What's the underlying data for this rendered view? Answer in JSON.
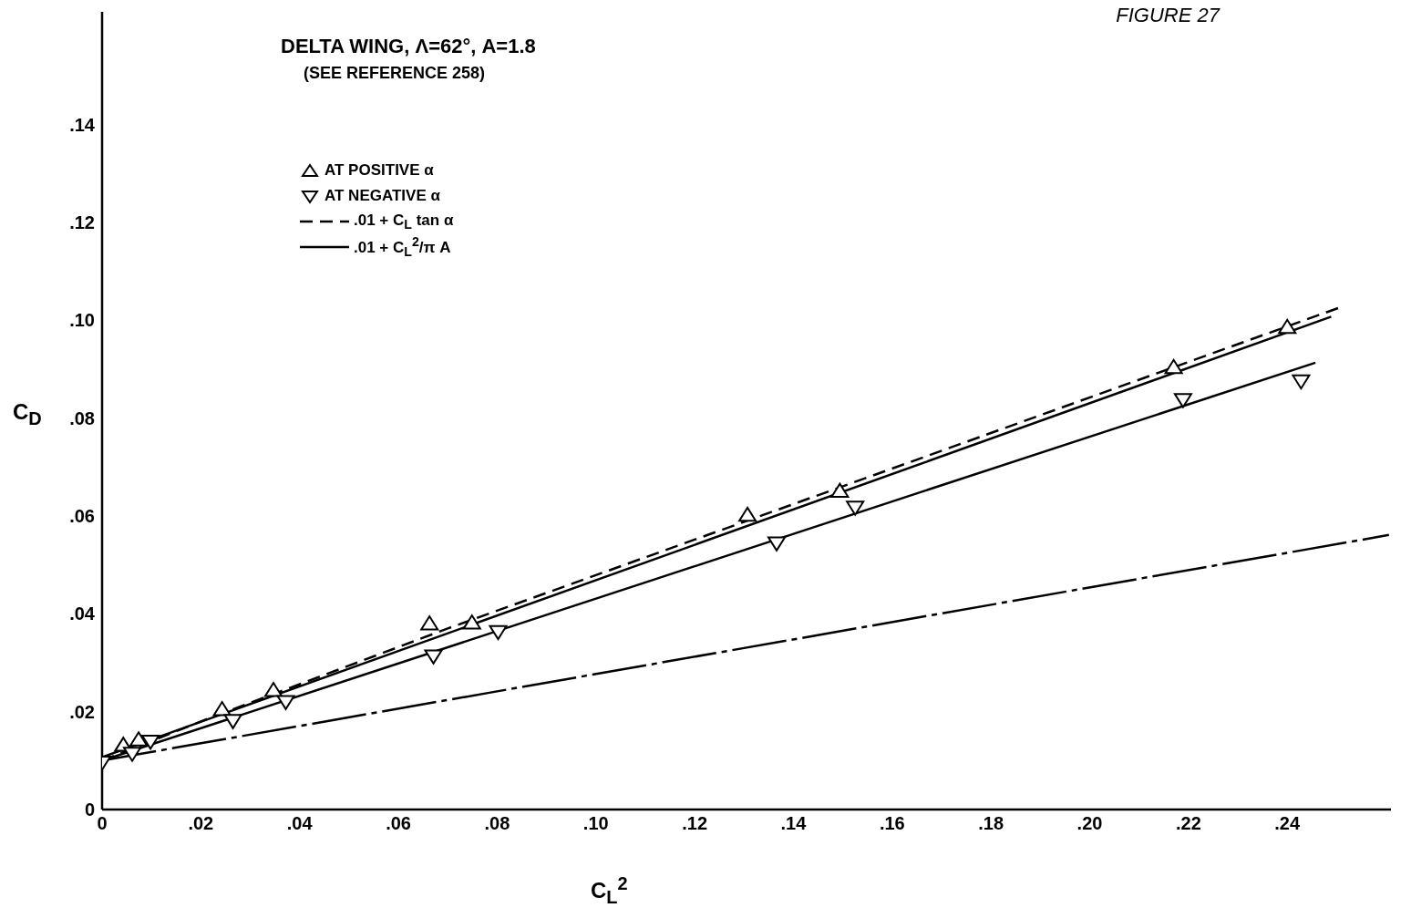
{
  "chart_data": {
    "type": "scatter",
    "title": "DELTA WING, Λ=62°, A=1.8",
    "subtitle": "(SEE REFERENCE 258)",
    "xlabel": "C$_{L}$$^{2}$",
    "ylabel": "C$_{D}$",
    "annotations": [
      "FIGURE 27"
    ],
    "xlim": [
      0,
      0.261
    ],
    "ylim": [
      0,
      0.163
    ],
    "xticks": [
      0,
      {
        "value": 0.02,
        "label": ".02"
      },
      {
        "value": 0.04,
        "label": ".04"
      },
      {
        "value": 0.06,
        "label": ".06"
      },
      {
        "value": 0.08,
        "label": ".08"
      },
      {
        "value": 0.1,
        "label": ".10"
      },
      {
        "value": 0.12,
        "label": ".12"
      },
      {
        "value": 0.14,
        "label": ".14"
      },
      {
        "value": 0.16,
        "label": ".16"
      },
      {
        "value": 0.18,
        "label": ".18"
      },
      {
        "value": 0.2,
        "label": ".20"
      },
      {
        "value": 0.22,
        "label": ".22"
      },
      {
        "value": 0.24,
        "label": ".24"
      }
    ],
    "yticks": [
      0,
      {
        "value": 0.02,
        "label": ".02"
      },
      {
        "value": 0.04,
        "label": ".04"
      },
      {
        "value": 0.06,
        "label": ".06"
      },
      {
        "value": 0.08,
        "label": ".08"
      },
      {
        "value": 0.1,
        "label": ".10"
      },
      {
        "value": 0.12,
        "label": ".12"
      },
      {
        "value": 0.14,
        "label": ".14"
      }
    ],
    "grid": false,
    "legend": "top left",
    "series": [
      {
        "name": "AT POSITIVE α",
        "marker": "triangle",
        "color": "#000000",
        "x": [
          0.0043,
          0.0074,
          0.0243,
          0.0347,
          0.0663,
          0.0749,
          0.1307,
          0.1494,
          0.217,
          0.24
        ],
        "values": [
          0.013,
          0.0141,
          0.0203,
          0.0242,
          0.0378,
          0.038,
          0.06,
          0.0649,
          0.0902,
          0.0984
        ]
      },
      {
        "name": "AT NEGATIVE α",
        "marker": "triangle-down",
        "color": "#000000",
        "x": [
          0,
          0.0061,
          0.0098,
          0.0265,
          0.0372,
          0.0671,
          0.0802,
          0.1366,
          0.1525,
          0.2189,
          0.2428
        ],
        "values": [
          0.0098,
          0.0116,
          0.0141,
          0.0183,
          0.0222,
          0.0315,
          0.0365,
          0.0546,
          0.0619,
          0.0839,
          0.0877
        ]
      },
      {
        "name": ".01 + C$_{L}$ tan α",
        "type": "line",
        "line_style": "dashed",
        "color": "#000000",
        "x": [
          0,
          0.02,
          0.07,
          0.2504
        ],
        "values": [
          0.01,
          0.018,
          0.037,
          0.1025
        ]
      },
      {
        "name": ".01 + C$_{L}$$^{2}$/π A",
        "type": "line",
        "line_style": "dashdot",
        "color": "#000000",
        "x": [
          0,
          0.2606
        ],
        "values": [
          0.01,
          0.0561
        ]
      },
      {
        "type": "line",
        "line_style": "solid",
        "color": "#000000",
        "x": [
          0,
          0.2489
        ],
        "values": [
          0.0107,
          0.1007
        ]
      },
      {
        "type": "line",
        "line_style": "solid",
        "color": "#000000",
        "x": [
          0,
          0.2457
        ],
        "values": [
          0.01,
          0.0913
        ]
      }
    ]
  }
}
